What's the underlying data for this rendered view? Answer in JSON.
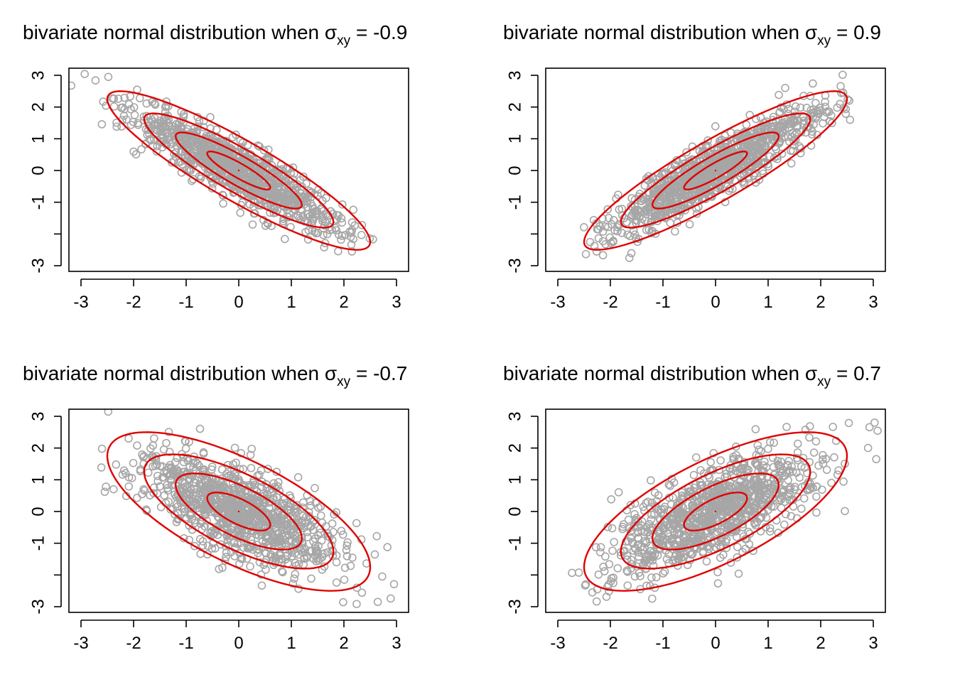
{
  "figure": {
    "title_prefix": "bivariate normal distribution when ",
    "sigma_symbol": "σ",
    "sigma_subscript": "xy",
    "equals": "=",
    "point_color": "#a6a6a6",
    "contour_color": "#e00000"
  },
  "chart_data": [
    {
      "type": "scatter",
      "rho_label": "-0.9",
      "rho": -0.9,
      "n_points": 1000,
      "xlim": [
        -3.2,
        3.2
      ],
      "ylim": [
        -3.2,
        3.2
      ],
      "x_ticks": [
        "-3",
        "-2",
        "-1",
        "0",
        "1",
        "2",
        "3"
      ],
      "y_ticks": [
        "-3",
        "",
        "-1",
        "0",
        "1",
        "2",
        "3"
      ],
      "contour_levels_sd": [
        0.6,
        1.2,
        1.8,
        2.5
      ],
      "grid": false,
      "legend": "none"
    },
    {
      "type": "scatter",
      "rho_label": "0.9",
      "rho": 0.9,
      "n_points": 1000,
      "xlim": [
        -3.2,
        3.2
      ],
      "ylim": [
        -3.2,
        3.2
      ],
      "x_ticks": [
        "-3",
        "-2",
        "-1",
        "0",
        "1",
        "2",
        "3"
      ],
      "y_ticks": [
        "-3",
        "",
        "-1",
        "0",
        "1",
        "2",
        "3"
      ],
      "contour_levels_sd": [
        0.6,
        1.2,
        1.8,
        2.5
      ],
      "grid": false,
      "legend": "none"
    },
    {
      "type": "scatter",
      "rho_label": "-0.7",
      "rho": -0.7,
      "n_points": 1000,
      "xlim": [
        -3.2,
        3.2
      ],
      "ylim": [
        -3.2,
        3.2
      ],
      "x_ticks": [
        "-3",
        "-2",
        "-1",
        "0",
        "1",
        "2",
        "3"
      ],
      "y_ticks": [
        "-3",
        "",
        "-1",
        "0",
        "1",
        "2",
        "3"
      ],
      "contour_levels_sd": [
        0.6,
        1.2,
        1.8,
        2.5
      ],
      "grid": false,
      "legend": "none"
    },
    {
      "type": "scatter",
      "rho_label": "0.7",
      "rho": 0.7,
      "n_points": 1000,
      "xlim": [
        -3.2,
        3.2
      ],
      "ylim": [
        -3.2,
        3.2
      ],
      "x_ticks": [
        "-3",
        "-2",
        "-1",
        "0",
        "1",
        "2",
        "3"
      ],
      "y_ticks": [
        "-3",
        "",
        "-1",
        "0",
        "1",
        "2",
        "3"
      ],
      "contour_levels_sd": [
        0.6,
        1.2,
        1.8,
        2.5
      ],
      "grid": false,
      "legend": "none"
    }
  ]
}
